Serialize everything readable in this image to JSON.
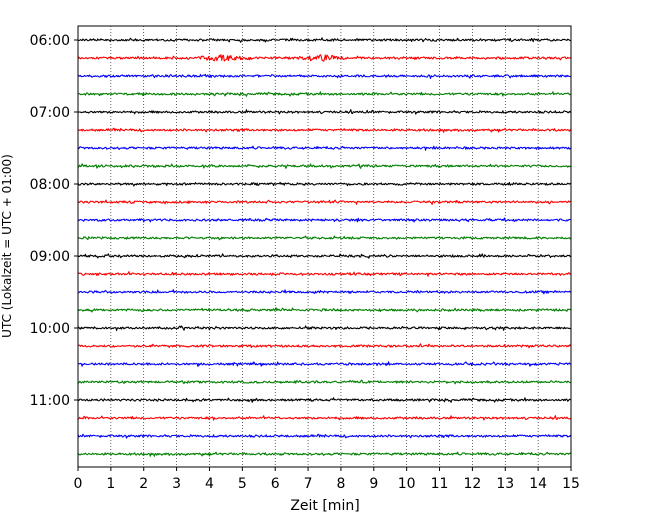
{
  "chart_data": {
    "type": "line",
    "xlabel": "Zeit  [min]",
    "ylabel": "UTC (Lokalzeit = UTC + 01:00)",
    "xlim": [
      0,
      15
    ],
    "x_ticks": [
      0,
      1,
      2,
      3,
      4,
      5,
      6,
      7,
      8,
      9,
      10,
      11,
      12,
      13,
      14,
      15
    ],
    "x_grid": true,
    "y_axis_start": "06:00",
    "row_minutes": 15,
    "y_tick_labels": [
      "06:00",
      "07:00",
      "08:00",
      "09:00",
      "10:00",
      "11:00"
    ],
    "series_colors": [
      "#000000",
      "#ff0000",
      "#0000ff",
      "#008000"
    ],
    "traces": [
      {
        "start": "06:00",
        "color": "#000000"
      },
      {
        "start": "06:15",
        "color": "#ff0000",
        "event_minutes": [
          4.4,
          7.4
        ]
      },
      {
        "start": "06:30",
        "color": "#0000ff"
      },
      {
        "start": "06:45",
        "color": "#008000"
      },
      {
        "start": "07:00",
        "color": "#000000"
      },
      {
        "start": "07:15",
        "color": "#ff0000"
      },
      {
        "start": "07:30",
        "color": "#0000ff"
      },
      {
        "start": "07:45",
        "color": "#008000"
      },
      {
        "start": "08:00",
        "color": "#000000"
      },
      {
        "start": "08:15",
        "color": "#ff0000"
      },
      {
        "start": "08:30",
        "color": "#0000ff"
      },
      {
        "start": "08:45",
        "color": "#008000"
      },
      {
        "start": "09:00",
        "color": "#000000"
      },
      {
        "start": "09:15",
        "color": "#ff0000"
      },
      {
        "start": "09:30",
        "color": "#0000ff"
      },
      {
        "start": "09:45",
        "color": "#008000"
      },
      {
        "start": "10:00",
        "color": "#000000"
      },
      {
        "start": "10:15",
        "color": "#ff0000"
      },
      {
        "start": "10:30",
        "color": "#0000ff"
      },
      {
        "start": "10:45",
        "color": "#008000"
      },
      {
        "start": "11:00",
        "color": "#000000"
      },
      {
        "start": "11:15",
        "color": "#ff0000"
      },
      {
        "start": "11:30",
        "color": "#0000ff"
      },
      {
        "start": "11:45",
        "color": "#008000"
      }
    ]
  }
}
